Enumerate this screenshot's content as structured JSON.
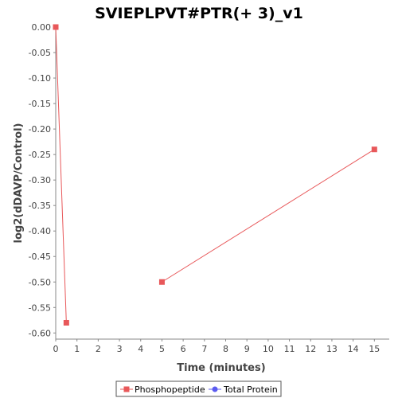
{
  "chart_data": {
    "type": "line",
    "title": "SVIEPLPVT#PTR(+ 3)_v1",
    "xlabel": "Time (minutes)",
    "ylabel": "log2(dDAVP/Control)",
    "xlim": [
      0,
      15.7
    ],
    "ylim": [
      -0.612,
      0.0
    ],
    "x_ticks": [
      0,
      1,
      2,
      3,
      4,
      5,
      6,
      7,
      8,
      9,
      10,
      11,
      12,
      13,
      14,
      15
    ],
    "y_ticks": [
      0.0,
      -0.05,
      -0.1,
      -0.15,
      -0.2,
      -0.25,
      -0.3,
      -0.35,
      -0.4,
      -0.45,
      -0.5,
      -0.55,
      -0.6
    ],
    "y_tick_labels": [
      "0.00",
      "-0.05",
      "-0.10",
      "-0.15",
      "-0.20",
      "-0.25",
      "-0.30",
      "-0.35",
      "-0.40",
      "-0.45",
      "-0.50",
      "-0.55",
      "-0.60"
    ],
    "grid": false,
    "legend_position": "bottom",
    "series": [
      {
        "name": "Phosphopeptide",
        "color": "#e8585a",
        "marker": "square",
        "segments": [
          [
            {
              "x": 0,
              "y": 0.0
            },
            {
              "x": 0.5,
              "y": -0.58
            }
          ],
          [
            {
              "x": 5,
              "y": -0.5
            },
            {
              "x": 15,
              "y": -0.24
            }
          ]
        ]
      },
      {
        "name": "Total Protein",
        "color": "#5b5bf0",
        "marker": "circle",
        "segments": []
      }
    ]
  }
}
